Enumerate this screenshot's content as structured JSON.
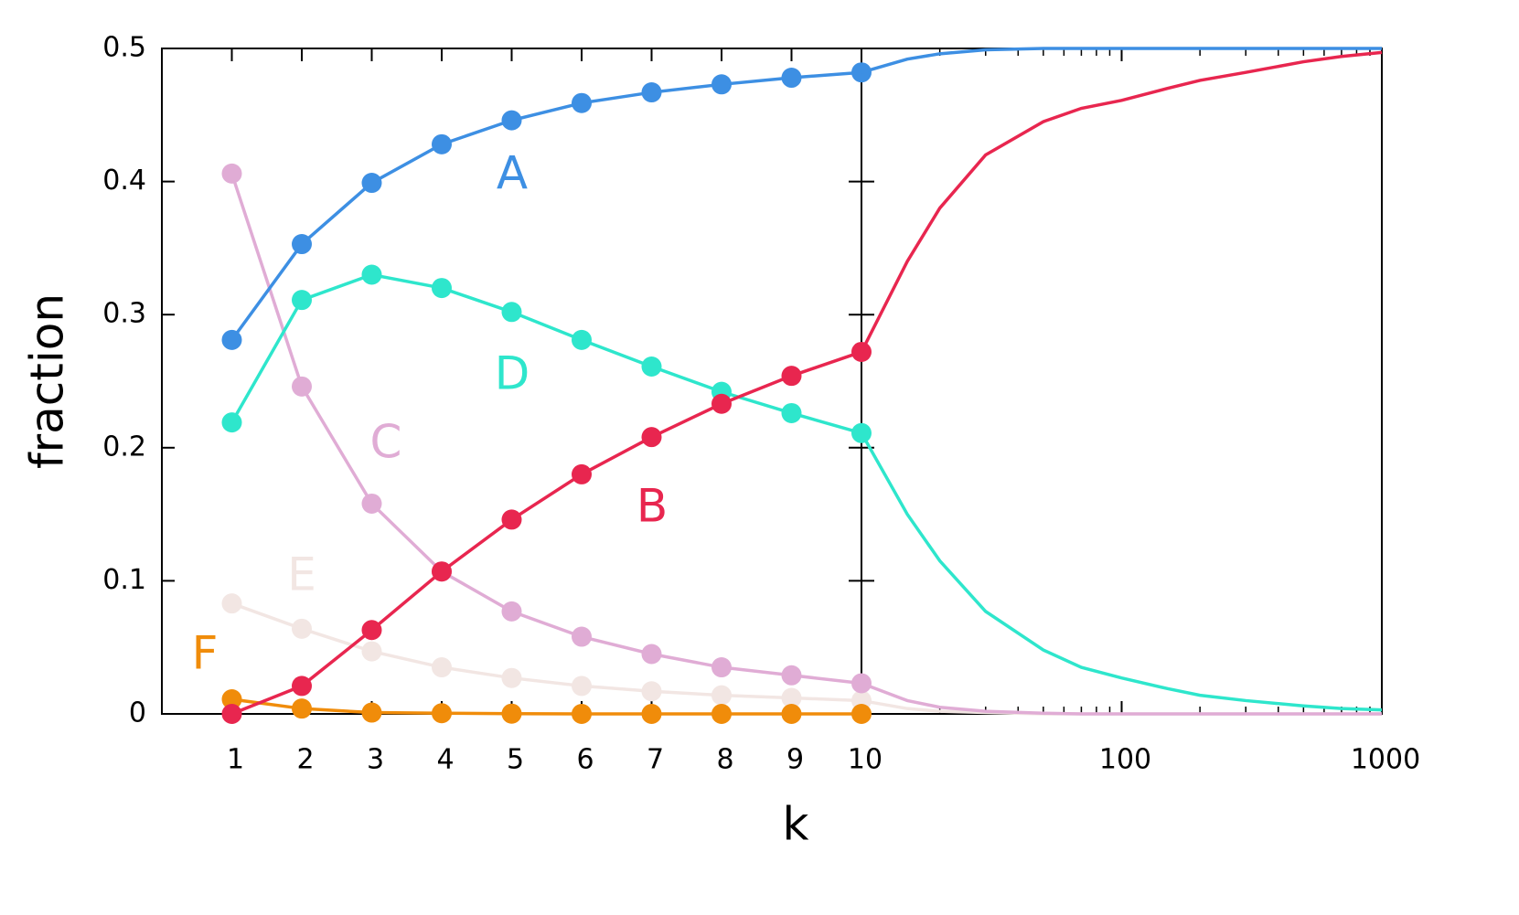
{
  "chart_data": [
    {
      "type": "line",
      "xlabel": "k",
      "ylabel": "fraction",
      "x": [
        1,
        2,
        3,
        4,
        5,
        6,
        7,
        8,
        9,
        10
      ],
      "xlim": [
        0,
        10
      ],
      "xticks": [
        1,
        2,
        3,
        4,
        5,
        6,
        7,
        8,
        9,
        10
      ],
      "ylim": [
        0,
        0.5
      ],
      "yticks": [
        0,
        0.1,
        0.2,
        0.3,
        0.4,
        0.5
      ],
      "series": [
        {
          "name": "E",
          "color": "#f2e6e3",
          "values": [
            0.083,
            0.064,
            0.047,
            0.035,
            0.027,
            0.021,
            0.017,
            0.014,
            0.012,
            0.01
          ]
        },
        {
          "name": "F",
          "color": "#f08c0a",
          "values": [
            0.011,
            0.004,
            0.001,
            0.0005,
            0.0002,
            0,
            0,
            0,
            0,
            0
          ]
        },
        {
          "name": "C",
          "color": "#e0acd5",
          "values": [
            0.406,
            0.246,
            0.158,
            0.107,
            0.077,
            0.058,
            0.045,
            0.035,
            0.029,
            0.023
          ]
        },
        {
          "name": "D",
          "color": "#2ee6cc",
          "values": [
            0.219,
            0.311,
            0.33,
            0.32,
            0.302,
            0.281,
            0.261,
            0.242,
            0.226,
            0.211
          ]
        },
        {
          "name": "B",
          "color": "#e8264f",
          "values": [
            0,
            0.021,
            0.063,
            0.107,
            0.146,
            0.18,
            0.208,
            0.233,
            0.254,
            0.272
          ]
        },
        {
          "name": "A",
          "color": "#3d8fe3",
          "values": [
            0.281,
            0.353,
            0.399,
            0.428,
            0.446,
            0.459,
            0.467,
            0.473,
            0.478,
            0.482
          ]
        }
      ]
    },
    {
      "type": "line",
      "log_x": true,
      "x": [
        10,
        15,
        20,
        30,
        50,
        70,
        100,
        150,
        200,
        300,
        500,
        700,
        1000
      ],
      "xlim": [
        10,
        1000
      ],
      "xticks": [
        100,
        1000
      ],
      "xminorticks": [
        20,
        30,
        40,
        50,
        60,
        70,
        80,
        90,
        200,
        300,
        400,
        500,
        600,
        700,
        800,
        900
      ],
      "ylim": [
        0,
        0.5
      ],
      "series": [
        {
          "color": "#f2e6e3",
          "values": [
            0.01,
            0.004,
            0.002,
            0.001,
            0,
            0,
            0,
            0,
            0,
            0,
            0,
            0,
            0
          ]
        },
        {
          "color": "#e0acd5",
          "values": [
            0.023,
            0.01,
            0.005,
            0.002,
            0.0005,
            0,
            0,
            0,
            0,
            0,
            0,
            0,
            0
          ]
        },
        {
          "color": "#2ee6cc",
          "values": [
            0.211,
            0.15,
            0.115,
            0.077,
            0.048,
            0.035,
            0.027,
            0.019,
            0.014,
            0.01,
            0.006,
            0.004,
            0.003
          ]
        },
        {
          "color": "#e8264f",
          "values": [
            0.272,
            0.34,
            0.38,
            0.42,
            0.445,
            0.455,
            0.461,
            0.47,
            0.476,
            0.482,
            0.49,
            0.494,
            0.497
          ]
        },
        {
          "color": "#3d8fe3",
          "values": [
            0.482,
            0.492,
            0.496,
            0.499,
            0.5,
            0.5,
            0.5,
            0.5,
            0.5,
            0.5,
            0.5,
            0.5,
            0.5
          ]
        }
      ]
    }
  ]
}
